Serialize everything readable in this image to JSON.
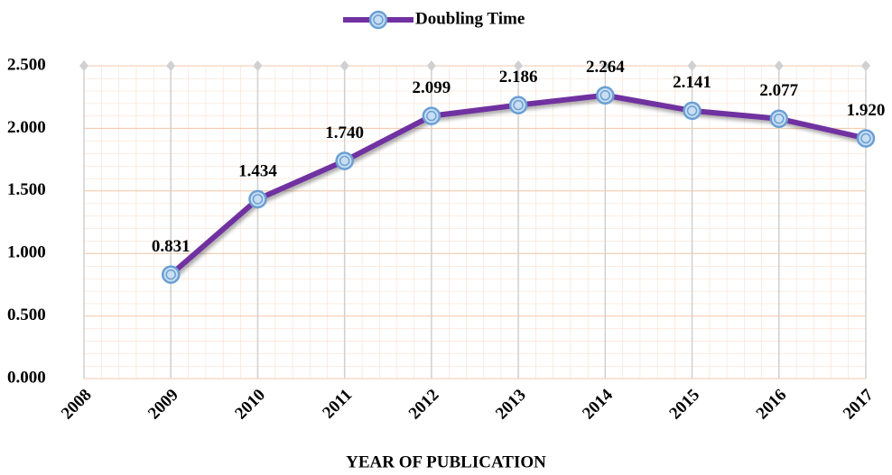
{
  "chart_data": {
    "type": "line",
    "x_label": "YEAR  OF PUBLICATION",
    "categories": [
      "2008",
      "2009",
      "2010",
      "2011",
      "2012",
      "2013",
      "2014",
      "2015",
      "2016",
      "2017"
    ],
    "series": [
      {
        "name": "Doubling Time",
        "color": "#7030a0",
        "values": [
          null,
          0.831,
          1.434,
          1.74,
          2.099,
          2.186,
          2.264,
          2.141,
          2.077,
          1.92
        ],
        "value_labels": [
          null,
          "0.831",
          "1.434",
          "1.740",
          "2.099",
          "2.186",
          "2.264",
          "2.141",
          "2.077",
          "1.920"
        ]
      }
    ],
    "ylim": [
      0,
      2.5
    ],
    "yticks": [
      {
        "value": 0,
        "label": "0.000"
      },
      {
        "value": 0.5,
        "label": "0.500"
      },
      {
        "value": 1,
        "label": "1.000"
      },
      {
        "value": 1.5,
        "label": "1.500"
      },
      {
        "value": 2,
        "label": "2.000"
      },
      {
        "value": 2.5,
        "label": "2.500"
      }
    ],
    "grid": true,
    "legend": "top"
  }
}
